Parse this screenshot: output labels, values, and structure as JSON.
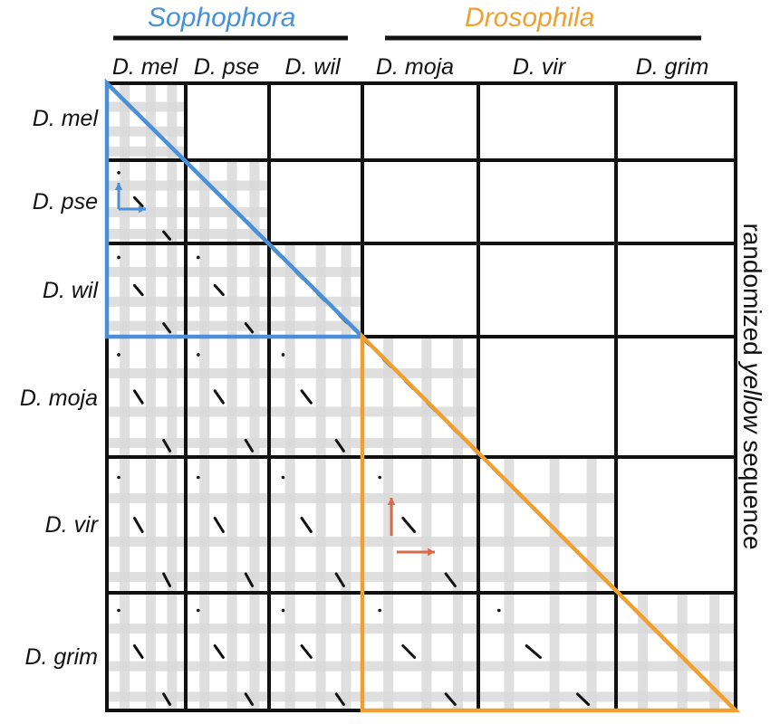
{
  "groups": [
    {
      "name": "Sophophora",
      "color": "#4a90d9"
    },
    {
      "name": "Drosophila",
      "color": "#f0a030"
    }
  ],
  "species": [
    "D. mel",
    "D. pse",
    "D. wil",
    "D. moja",
    "D. vir",
    "D. grim"
  ],
  "axis_label": {
    "before": "randomized ",
    "italic": "yellow",
    "after": " sequence"
  },
  "colors": {
    "grid": "#111111",
    "band": "#d9d9d9",
    "dots": "#111111",
    "sophophora": "#4a90d9",
    "drosophila": "#f0a030",
    "arrow_blue": "#4a90d9",
    "arrow_red": "#d96a4a"
  }
}
